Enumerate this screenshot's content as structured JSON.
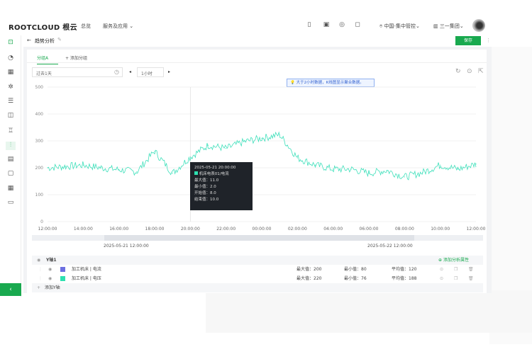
{
  "header": {
    "logo": "ROOTCLOUD 根云",
    "nav": [
      "总览",
      "服务及应用"
    ],
    "location": "中国-集中管控",
    "org": "三一集团",
    "icons": [
      "book-icon",
      "image-icon",
      "globe-icon",
      "bell-icon"
    ]
  },
  "page": {
    "title": "趋势分析",
    "save_label": "保存"
  },
  "tabs": {
    "active": "分组A",
    "add": "添加分组"
  },
  "filters": {
    "time_range": "过去1天",
    "interval": "1小时"
  },
  "notice": "大于2小时数据，K线图显示聚合数据。",
  "tooltip": {
    "time": "2025-05-21 20:00:00",
    "series": "机床电表01/电流",
    "lines": [
      "最大值：11.0",
      "最小值：2.0",
      "开始值：8.0",
      "结束值：10.0"
    ]
  },
  "range": {
    "start": "2025-05-21 12:00:00",
    "end": "2025-05-22 12:00:00"
  },
  "axis_table": {
    "title": "Y轴1",
    "add_attr": "添加分析属性",
    "add_axis": "添加Y轴",
    "rows": [
      {
        "name": "加工机床 | 电流",
        "color": "#6c6fe0",
        "max": "最大值：200",
        "min": "最小值：80",
        "avg": "平均值：120"
      },
      {
        "name": "加工机床 | 电压",
        "color": "#2ee0b0",
        "max": "最大值：220",
        "min": "最小值：76",
        "avg": "平均值：188"
      }
    ]
  },
  "chart_data": {
    "type": "line",
    "x": [
      "12:00:00",
      "13:00",
      "14:00:00",
      "15:00",
      "16:00:00",
      "17:00",
      "18:00:00",
      "19:00",
      "20:00:00",
      "21:00",
      "22:00:00",
      "23:00",
      "00:00:00",
      "01:00",
      "02:00:00",
      "03:00",
      "04:00:00",
      "05:00",
      "06:00:00",
      "07:00",
      "08:00:00",
      "09:00",
      "10:00:00",
      "11:00",
      "12:00:00"
    ],
    "xticks": [
      "12:00:00",
      "14:00:00",
      "16:00:00",
      "18:00:00",
      "20:00:00",
      "22:00:00",
      "00:00:00",
      "02:00:00",
      "04:00:00",
      "06:00:00",
      "08:00:00",
      "10:00:00",
      "12:00:00"
    ],
    "series": [
      {
        "color": "#3fe0bb",
        "values": [
          200,
          205,
          210,
          200,
          193,
          185,
          262,
          180,
          240,
          284,
          272,
          297,
          310,
          323,
          237,
          210,
          195,
          195,
          180,
          190,
          166,
          182,
          210,
          195,
          214
        ]
      }
    ],
    "yticks": [
      0,
      100,
      200,
      300,
      400,
      500
    ],
    "ylim": [
      0,
      500
    ],
    "grid": true
  }
}
